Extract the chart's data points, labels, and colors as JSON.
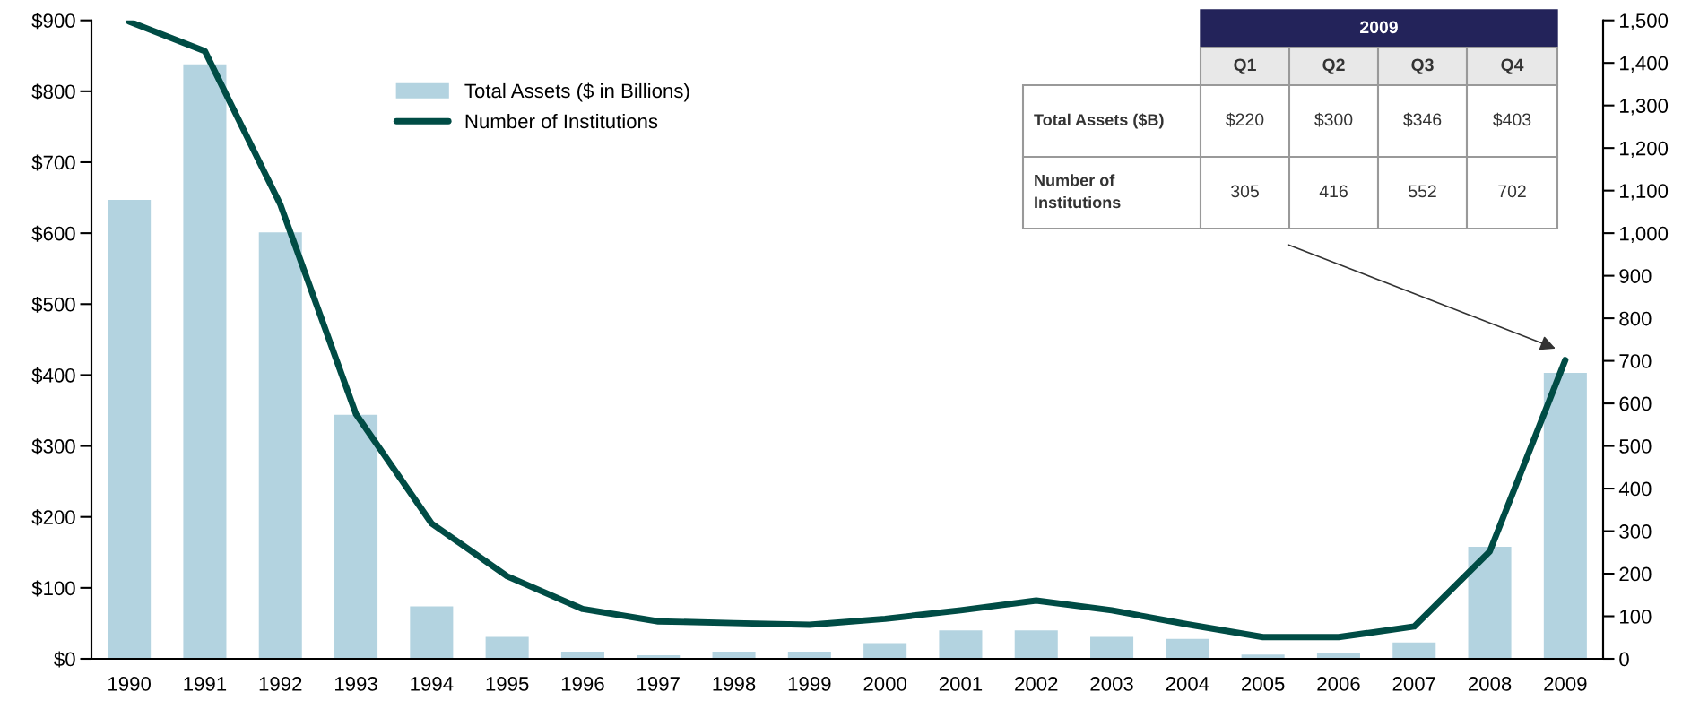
{
  "chart_data": {
    "type": "bar",
    "categories": [
      "1990",
      "1991",
      "1992",
      "1993",
      "1994",
      "1995",
      "1996",
      "1997",
      "1998",
      "1999",
      "2000",
      "2001",
      "2002",
      "2003",
      "2004",
      "2005",
      "2006",
      "2007",
      "2008",
      "2009"
    ],
    "series": [
      {
        "name": "Total Assets ($ in Billions)",
        "color": "#b3d3e0",
        "values": [
          647,
          838,
          601,
          344,
          74,
          31,
          10,
          5,
          10,
          10,
          22,
          40,
          40,
          31,
          28,
          6,
          8,
          23,
          158,
          403
        ]
      },
      {
        "name": "Number of Institutions",
        "type": "line",
        "axis": "y2",
        "color": "#004c45",
        "values": [
          1497,
          1428,
          1067,
          575,
          318,
          194,
          117,
          88,
          84,
          80,
          94,
          114,
          137,
          114,
          81,
          51,
          51,
          76,
          252,
          702
        ]
      }
    ],
    "ylim": [
      0,
      900
    ],
    "yticks": [
      {
        "value": 0,
        "label": "$0"
      },
      {
        "value": 100,
        "label": "$100"
      },
      {
        "value": 200,
        "label": "$200"
      },
      {
        "value": 300,
        "label": "$300"
      },
      {
        "value": 400,
        "label": "$400"
      },
      {
        "value": 500,
        "label": "$500"
      },
      {
        "value": 600,
        "label": "$600"
      },
      {
        "value": 700,
        "label": "$700"
      },
      {
        "value": 800,
        "label": "$800"
      },
      {
        "value": 900,
        "label": "$900"
      }
    ],
    "y2lim": [
      0,
      1500
    ],
    "y2ticks": [
      0,
      100,
      200,
      300,
      400,
      500,
      600,
      700,
      800,
      900,
      {
        "value": 1000,
        "label": "1,000"
      },
      {
        "value": 1100,
        "label": "1,100"
      },
      {
        "value": 1200,
        "label": "1,200"
      },
      {
        "value": 1300,
        "label": "1,300"
      },
      {
        "value": 1400,
        "label": "1,400"
      },
      {
        "value": 1500,
        "label": "1,500"
      }
    ],
    "grid": false,
    "legend": "top",
    "annotations": [
      "2009",
      "Q1",
      "Q2",
      "Q3",
      "Q4",
      "Total Assets ($B)",
      "$220",
      "$300",
      "$346",
      "$403",
      "Number of Institutions",
      "305",
      "416",
      "552",
      "702"
    ]
  }
}
